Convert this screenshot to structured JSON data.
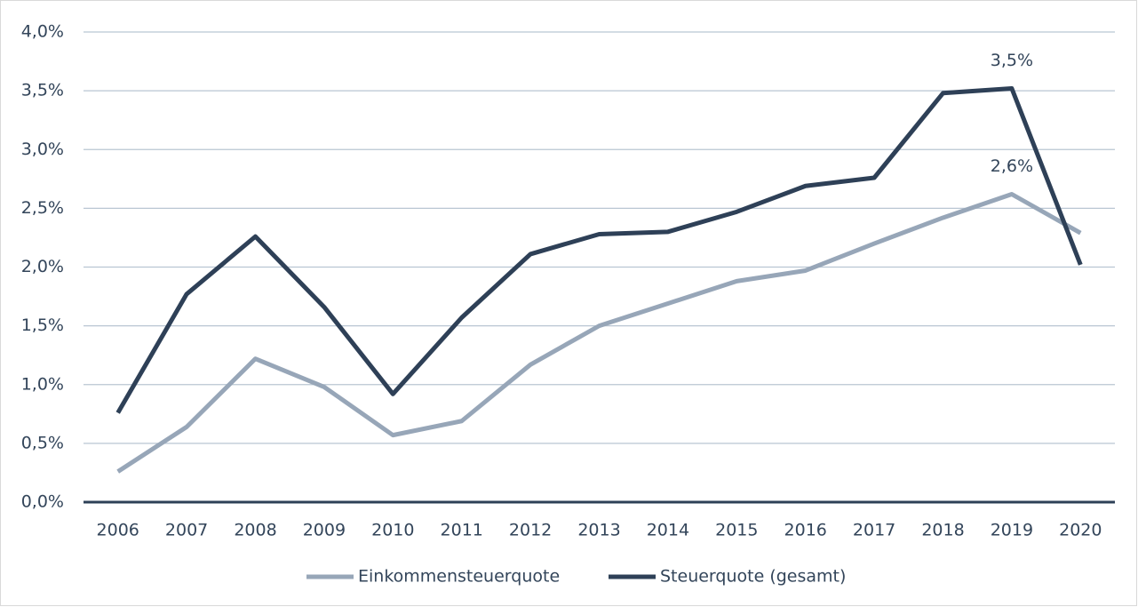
{
  "chart_data": {
    "type": "line",
    "categories": [
      "2006",
      "2007",
      "2008",
      "2009",
      "2010",
      "2011",
      "2012",
      "2013",
      "2014",
      "2015",
      "2016",
      "2017",
      "2018",
      "2019",
      "2020"
    ],
    "series": [
      {
        "name": "Einkommensteuerquote",
        "color": "#97a6b8",
        "values": [
          0.26,
          0.64,
          1.22,
          0.98,
          0.57,
          0.69,
          1.17,
          1.5,
          1.69,
          1.88,
          1.97,
          2.2,
          2.42,
          2.62,
          2.29
        ],
        "value_labels": [
          null,
          null,
          null,
          null,
          null,
          null,
          null,
          null,
          null,
          null,
          null,
          null,
          null,
          "2,6%",
          null
        ]
      },
      {
        "name": "Steuerquote (gesamt)",
        "color": "#2e4057",
        "values": [
          0.76,
          1.77,
          2.26,
          1.66,
          0.92,
          1.57,
          2.11,
          2.28,
          2.3,
          2.47,
          2.69,
          2.76,
          3.48,
          3.52,
          2.02
        ],
        "value_labels": [
          null,
          null,
          null,
          null,
          null,
          null,
          null,
          null,
          null,
          null,
          null,
          null,
          null,
          "3,5%",
          null
        ]
      }
    ],
    "ylim": [
      0,
      4
    ],
    "yticks": [
      {
        "value": 0,
        "label": "0,0%"
      },
      {
        "value": 0.5,
        "label": "0,5%"
      },
      {
        "value": 1,
        "label": "1,0%"
      },
      {
        "value": 1.5,
        "label": "1,5%"
      },
      {
        "value": 2,
        "label": "2,0%"
      },
      {
        "value": 2.5,
        "label": "2,5%"
      },
      {
        "value": 3,
        "label": "3,0%"
      },
      {
        "value": 3.5,
        "label": "3,5%"
      },
      {
        "value": 4,
        "label": "4,0%"
      }
    ],
    "grid": true,
    "legend": "bottom"
  }
}
